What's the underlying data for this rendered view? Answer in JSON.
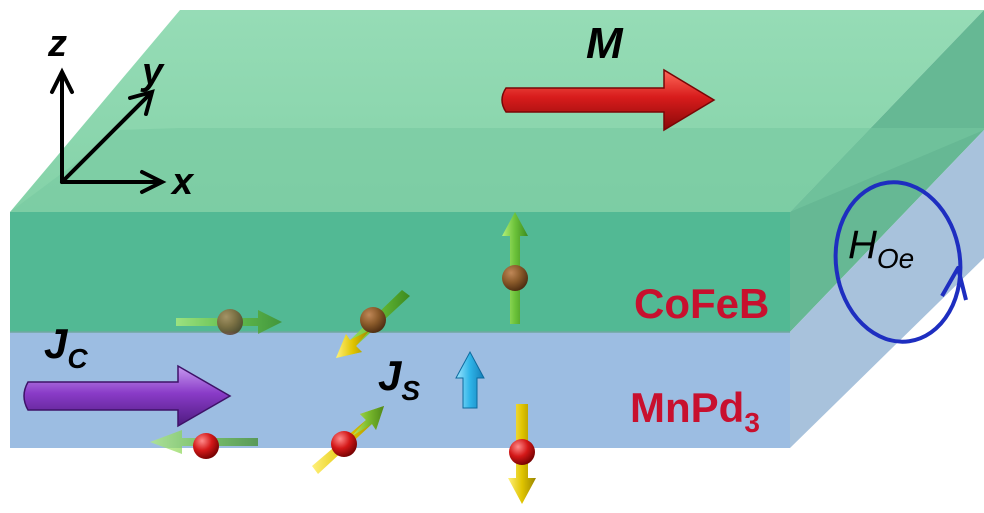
{
  "axes": {
    "x_label": "x",
    "y_label": "y",
    "z_label": "z"
  },
  "magnetization": {
    "label": "M"
  },
  "charge_current": {
    "label": "J",
    "subscript": "C"
  },
  "spin_current": {
    "label": "J",
    "subscript": "S"
  },
  "oersted_field": {
    "label": "H",
    "subscript": "Oe"
  },
  "layers": {
    "top": {
      "name": "CoFeB",
      "color": "#c8102e"
    },
    "bottom": {
      "name": "MnPd",
      "subscript": "3",
      "color": "#c8102e"
    }
  },
  "colors": {
    "cofeb_top": "#8ed8b0",
    "cofeb_front": "#52b994",
    "cofeb_side": "#66b894",
    "mnpd_front": "#9cbde2",
    "mnpd_side": "#a8c2dc",
    "magnetization_arrow": "#d01818",
    "charge_arrow": "#8a3cc8",
    "spin_current_arrow": "#2eb4e8",
    "oersted_loop": "#1e2ec0"
  }
}
